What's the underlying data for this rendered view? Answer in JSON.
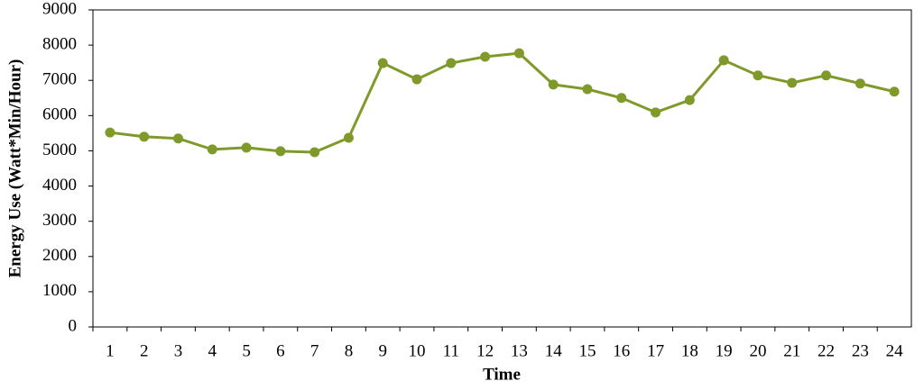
{
  "chart_data": {
    "type": "line",
    "x_label": "Time",
    "y_label": "Energy Use (Watt*Min/Hour)",
    "categories": [
      1,
      2,
      3,
      4,
      5,
      6,
      7,
      8,
      9,
      10,
      11,
      12,
      13,
      14,
      15,
      16,
      17,
      18,
      19,
      20,
      21,
      22,
      23,
      24
    ],
    "series": [
      {
        "name": "Energy Use",
        "color": "#7f9a2a",
        "values": [
          5520,
          5400,
          5350,
          5040,
          5090,
          4990,
          4960,
          5370,
          7490,
          7030,
          7490,
          7670,
          7770,
          6880,
          6750,
          6500,
          6090,
          6440,
          7570,
          7140,
          6930,
          7140,
          6910,
          6680
        ]
      }
    ],
    "ylim": [
      0,
      9000
    ],
    "yticks": [
      0,
      1000,
      2000,
      3000,
      4000,
      5000,
      6000,
      7000,
      8000,
      9000
    ],
    "grid": false
  }
}
